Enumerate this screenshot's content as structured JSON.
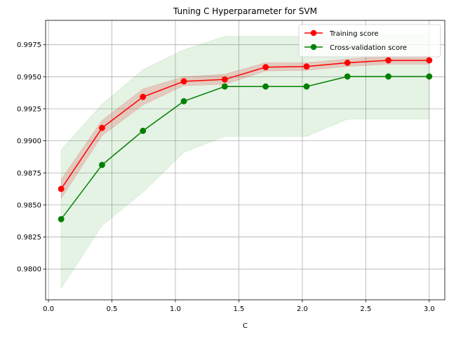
{
  "chart_data": {
    "type": "line",
    "title": "Tuning C Hyperparameter for SVM",
    "xlabel": "C",
    "ylabel": "",
    "xlim": [
      -0.0225,
      3.1225
    ],
    "ylim": [
      0.9776,
      0.9994
    ],
    "xticks": [
      "0.0",
      "0.5",
      "1.0",
      "1.5",
      "2.0",
      "2.5",
      "3.0"
    ],
    "yticks": [
      "0.9800",
      "0.9825",
      "0.9850",
      "0.9875",
      "0.9900",
      "0.9925",
      "0.9950",
      "0.9975"
    ],
    "grid": true,
    "legend_position": "top-right",
    "x": [
      0.1,
      0.4222,
      0.7444,
      1.0667,
      1.3889,
      1.7111,
      2.0333,
      2.3556,
      2.6778,
      3.0
    ],
    "series": [
      {
        "name": "Training score",
        "color": "#ff0000",
        "values": [
          0.98625,
          0.99101,
          0.99343,
          0.99464,
          0.99479,
          0.99575,
          0.9958,
          0.99609,
          0.99628,
          0.99628
        ],
        "band_lower": [
          0.9855,
          0.9904,
          0.9928,
          0.9943,
          0.9944,
          0.99545,
          0.9955,
          0.9958,
          0.99598,
          0.99598
        ],
        "band_upper": [
          0.987,
          0.9916,
          0.99405,
          0.995,
          0.9952,
          0.9961,
          0.9961,
          0.9964,
          0.9966,
          0.9966
        ],
        "band_color": "#d62728"
      },
      {
        "name": "Cross-validation score",
        "color": "#008000",
        "values": [
          0.98389,
          0.98812,
          0.99078,
          0.99309,
          0.99424,
          0.99424,
          0.99424,
          0.99502,
          0.99502,
          0.99502
        ],
        "band_lower": [
          0.9785,
          0.9834,
          0.986,
          0.9891,
          0.99035,
          0.99035,
          0.99035,
          0.9917,
          0.9917,
          0.9917
        ],
        "band_upper": [
          0.9893,
          0.99285,
          0.99555,
          0.9971,
          0.99815,
          0.99815,
          0.99815,
          0.99835,
          0.99835,
          0.99835
        ],
        "band_color": "#2ca02c"
      }
    ]
  }
}
